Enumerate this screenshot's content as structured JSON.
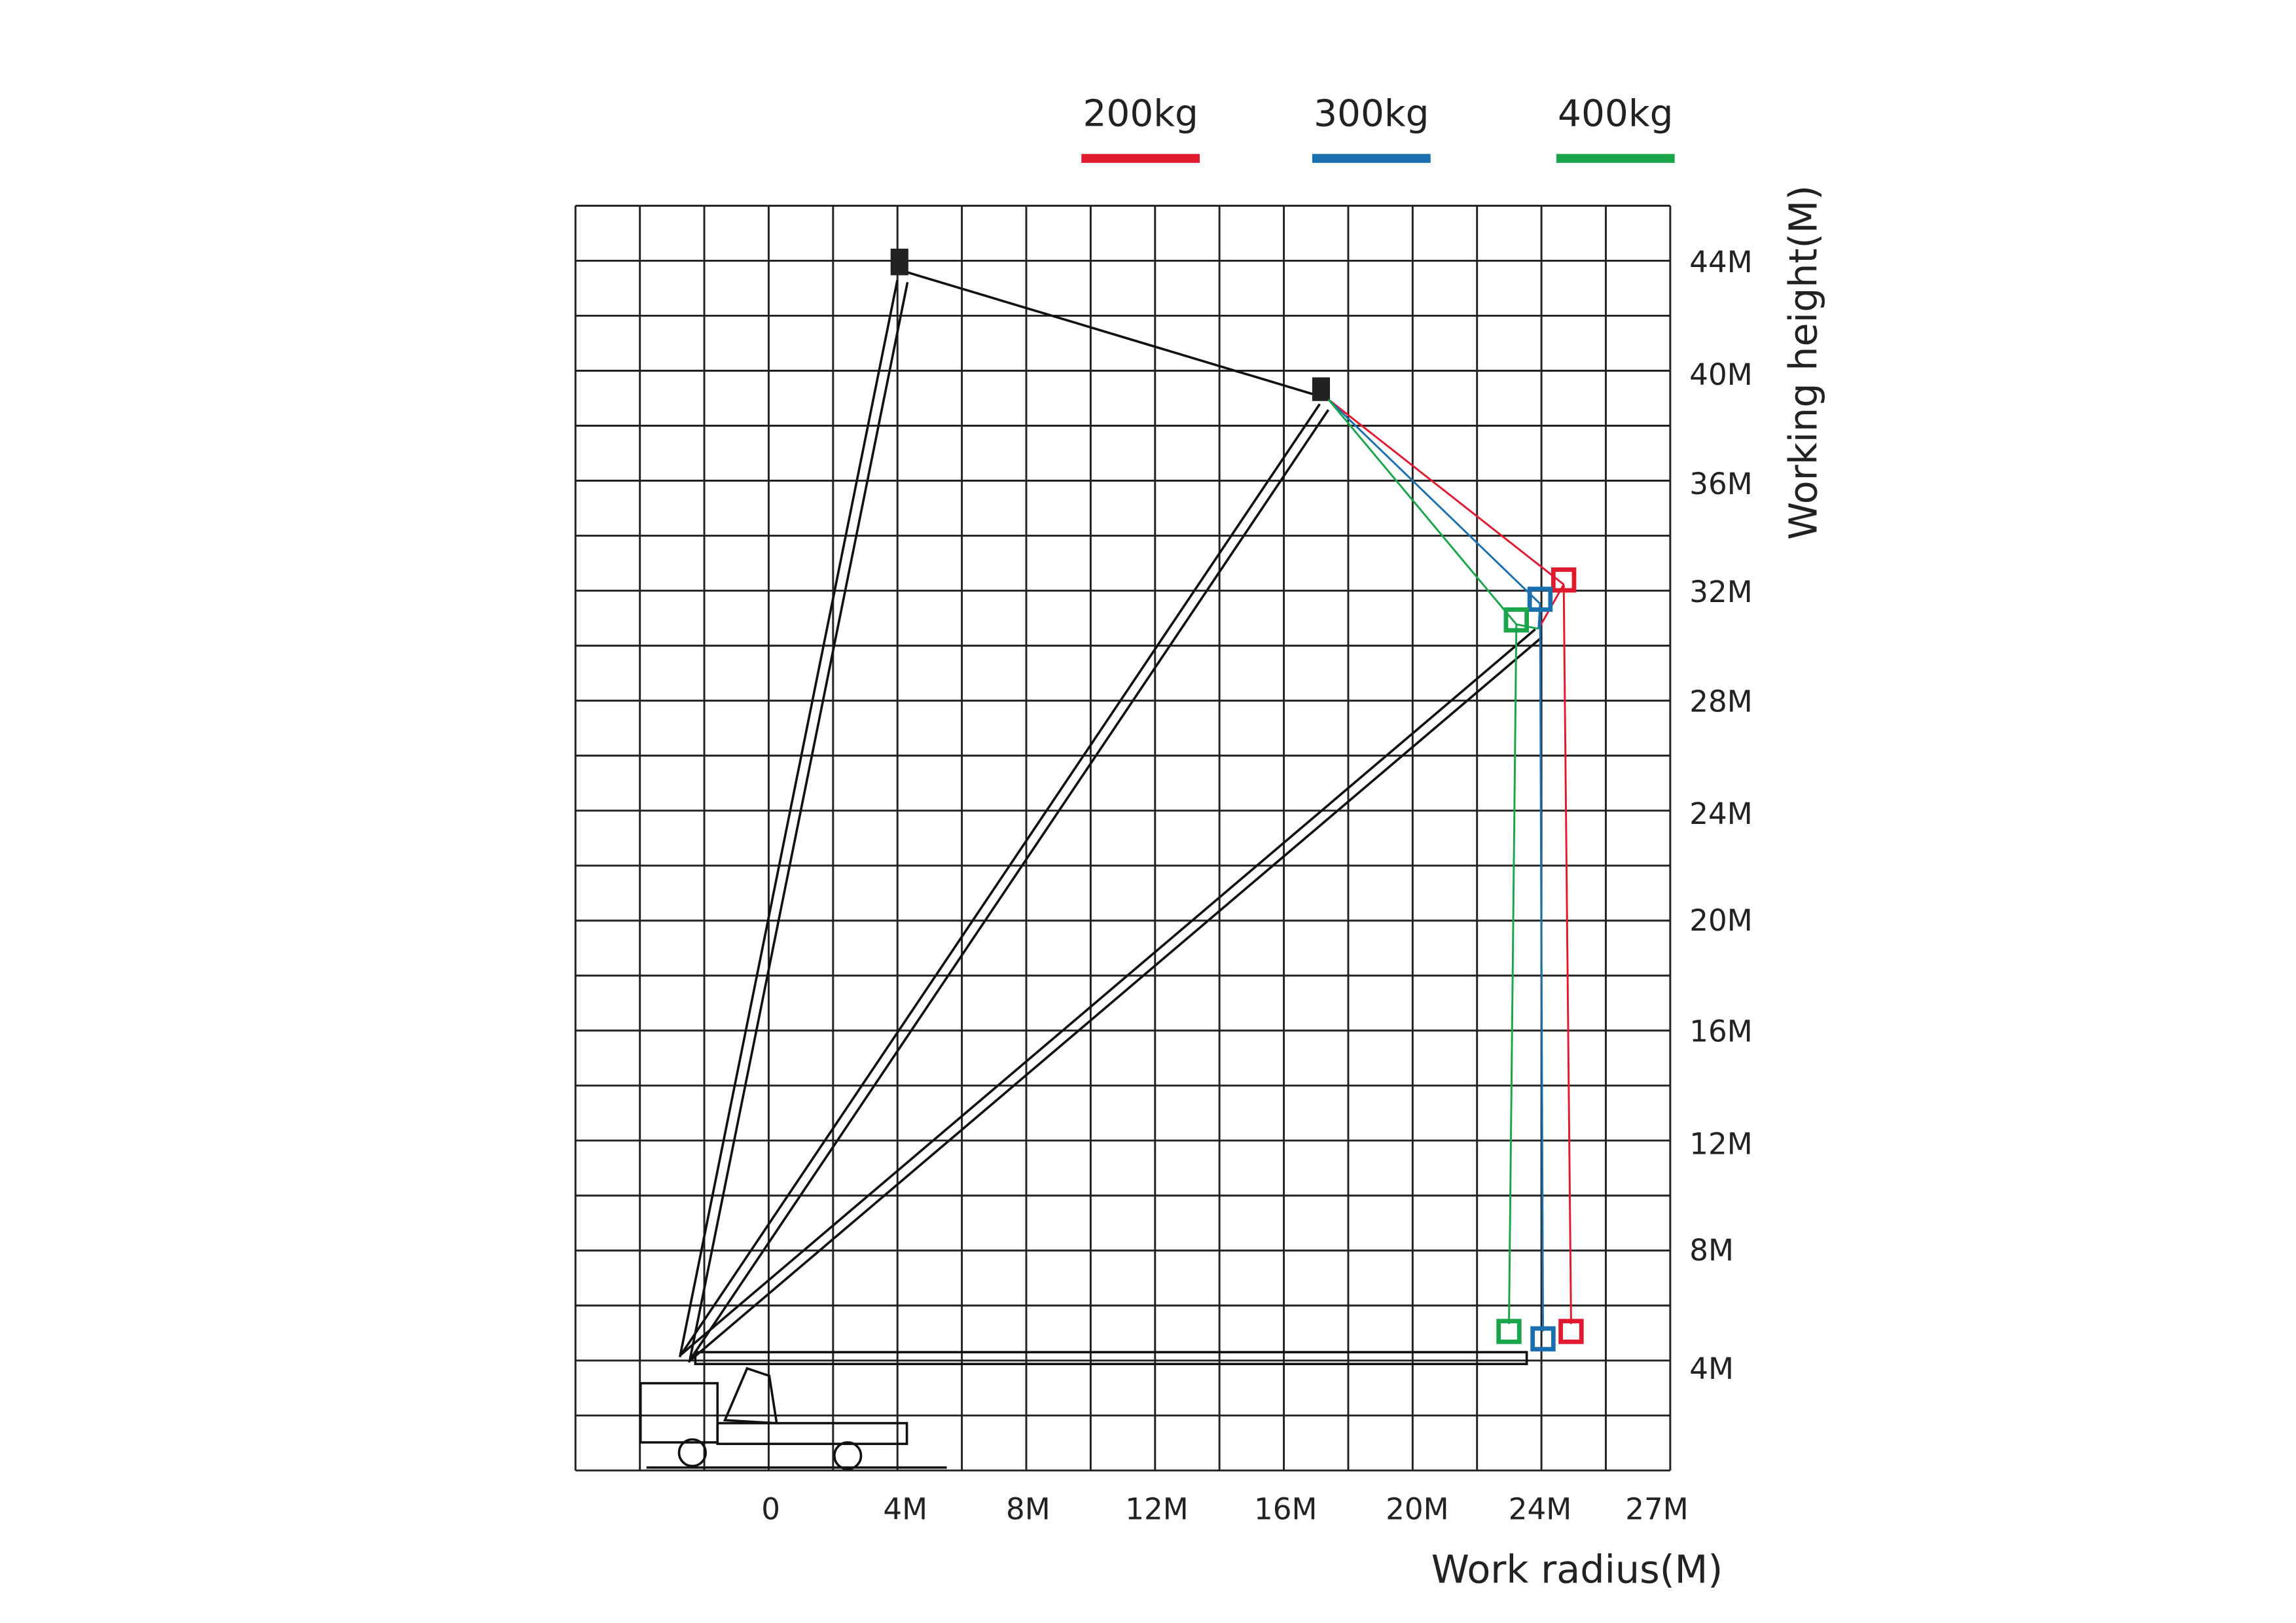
{
  "legend": [
    {
      "label": "200kg",
      "color": "#e0192f"
    },
    {
      "label": "300kg",
      "color": "#1a6fb0"
    },
    {
      "label": "400kg",
      "color": "#1aa54a"
    }
  ],
  "x_axis": {
    "title": "Work radius(M)",
    "labels": [
      "0",
      "4M",
      "8M",
      "12M",
      "16M",
      "20M",
      "24M",
      "27M"
    ]
  },
  "y_axis": {
    "title": "Working height(M)",
    "labels": [
      "44M",
      "40M",
      "36M",
      "32M",
      "28M",
      "24M",
      "20M",
      "16M",
      "12M",
      "8M",
      "4M"
    ]
  }
}
